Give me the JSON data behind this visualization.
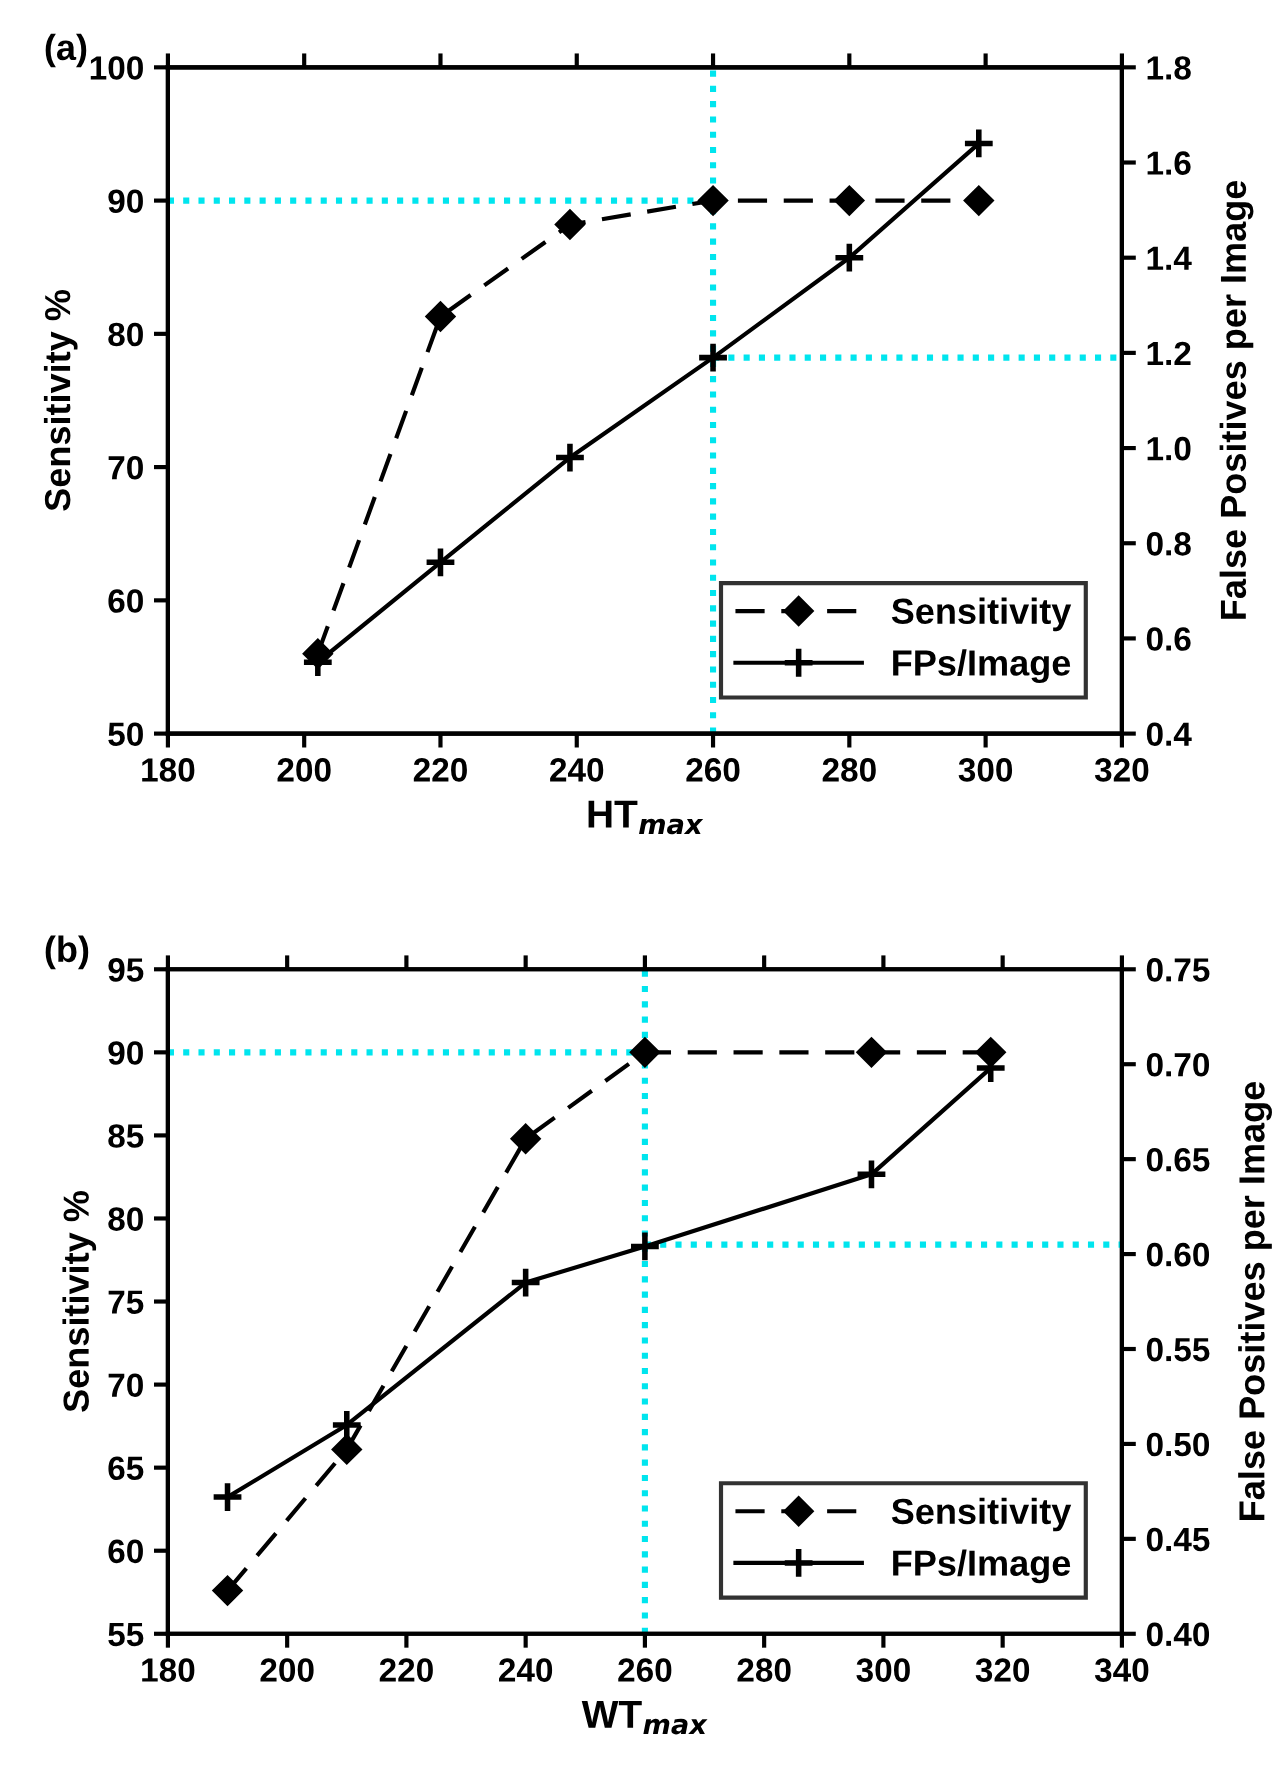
{
  "chart_data": [
    {
      "type": "line",
      "title": "(a)",
      "xlabel": "HT$_{max}$",
      "ylabel": "Sensitivity %",
      "y2label": "False Positives per Image",
      "xlim": [
        180,
        320
      ],
      "xticks": [
        180,
        200,
        220,
        240,
        260,
        280,
        300,
        320
      ],
      "ylim": [
        50,
        100
      ],
      "yticks": [
        50,
        60,
        70,
        80,
        90,
        100
      ],
      "y2lim": [
        0.4,
        1.8
      ],
      "y2ticks": [
        {
          "value": 0.4,
          "label": "0.4"
        },
        {
          "value": 0.6,
          "label": "0.6"
        },
        {
          "value": 0.8,
          "label": "0.8"
        },
        {
          "value": 1.0,
          "label": "1.0"
        },
        {
          "value": 1.2,
          "label": "1.2"
        },
        {
          "value": 1.4,
          "label": "1.4"
        },
        {
          "value": 1.6,
          "label": "1.6"
        },
        {
          "value": 1.8,
          "label": "1.8"
        }
      ],
      "legend": "bottom right",
      "series": [
        {
          "name": "Sensitivity",
          "color": "#000000",
          "marker": "diamond",
          "line_style": "dashed",
          "x": [
            202,
            220,
            239,
            260,
            280,
            299
          ],
          "values": [
            56,
            81.3,
            88.2,
            90,
            90,
            90
          ]
        },
        {
          "name": "FPs/Image",
          "color": "#000000",
          "marker": "cross",
          "line_style": "solid",
          "axis": "y2",
          "x": [
            202,
            220,
            239,
            260,
            280,
            299
          ],
          "values": [
            0.55,
            0.76,
            0.98,
            1.19,
            1.4,
            1.64
          ]
        }
      ],
      "ref_lines": [
        {
          "axis": "x",
          "value": 260,
          "color": "#00e5ee",
          "line_style": "dotted"
        },
        {
          "axis": "y",
          "value": 90,
          "color": "#00e5ee",
          "line_style": "dotted"
        },
        {
          "axis": "y2",
          "value": 1.19,
          "color": "#00e5ee",
          "line_style": "dotted"
        }
      ]
    },
    {
      "type": "line",
      "title": "(b)",
      "xlabel": "WT$_{max}$",
      "ylabel": "Sensitivity %",
      "y2label": "False Positives per Image",
      "xlim": [
        180,
        340
      ],
      "xticks": [
        180,
        200,
        220,
        240,
        260,
        280,
        300,
        320,
        340
      ],
      "ylim": [
        55,
        95
      ],
      "yticks": [
        55,
        60,
        65,
        70,
        75,
        80,
        85,
        90,
        95
      ],
      "y2lim": [
        0.4,
        0.75
      ],
      "y2ticks": [
        {
          "value": 0.4,
          "label": "0.40"
        },
        {
          "value": 0.45,
          "label": "0.45"
        },
        {
          "value": 0.5,
          "label": "0.50"
        },
        {
          "value": 0.55,
          "label": "0.55"
        },
        {
          "value": 0.6,
          "label": "0.60"
        },
        {
          "value": 0.65,
          "label": "0.65"
        },
        {
          "value": 0.7,
          "label": "0.70"
        },
        {
          "value": 0.75,
          "label": "0.75"
        }
      ],
      "legend": "bottom right",
      "series": [
        {
          "name": "Sensitivity",
          "color": "#000000",
          "marker": "diamond",
          "line_style": "dashed",
          "x": [
            190,
            210,
            240,
            260,
            298,
            318
          ],
          "values": [
            57.6,
            66.1,
            84.8,
            90,
            90,
            90
          ]
        },
        {
          "name": "FPs/Image",
          "color": "#000000",
          "marker": "cross",
          "line_style": "solid",
          "axis": "y2",
          "x": [
            190,
            210,
            240,
            260,
            298,
            318
          ],
          "values": [
            0.472,
            0.51,
            0.585,
            0.604,
            0.642,
            0.698
          ]
        }
      ],
      "ref_lines": [
        {
          "axis": "x",
          "value": 260,
          "color": "#00e5ee",
          "line_style": "dotted"
        },
        {
          "axis": "y",
          "value": 90,
          "color": "#00e5ee",
          "line_style": "dotted"
        },
        {
          "axis": "y2",
          "value": 0.605,
          "color": "#00e5ee",
          "line_style": "dotted"
        }
      ]
    }
  ]
}
